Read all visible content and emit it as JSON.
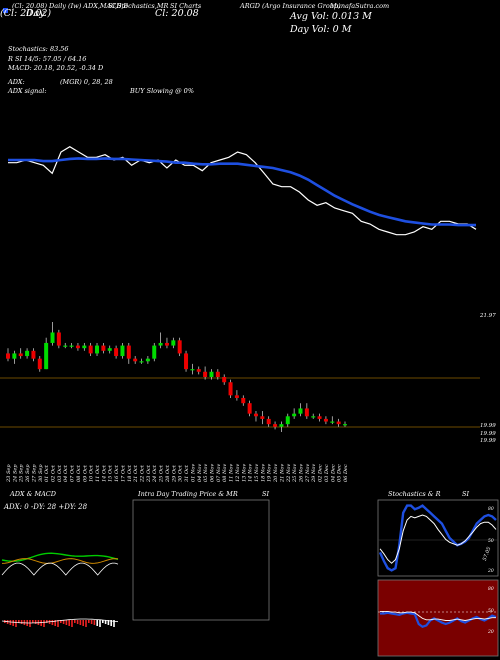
{
  "header": {
    "items": [
      "(Cl: 20.08) Daily (Iw) ADX,MACD,B",
      "SI,Stochastics,MR",
      "SI Charts",
      "ARGD (Argo Insurance Group)",
      "MunafaSutra.com"
    ],
    "line1_blocks": [
      "(Cl: 20.02)",
      "Cl: 20.08",
      "Avg Vol: 0.013 M"
    ],
    "date_chip": "Day",
    "day_vol": "Day Vol: 0  M"
  },
  "indicators": {
    "stochastics": "Stochastics: 83.56",
    "si": "R      SI 14/5: 57.05 / 64.16",
    "macd": "MACD: 20.18, 20.52, -0.34  D",
    "adx": "ADX:",
    "adx_signal": "ADX  signal:",
    "mgr": "(MGR) 0, 28, 28",
    "buy_signal": "BUY Slowing @ 0%"
  },
  "price_labels": {
    "top": "21.97",
    "bottom": [
      "19.99",
      "19.99",
      "19.99"
    ]
  },
  "x_dates": [
    "23 Sep",
    "24 Sep",
    "25 Sep",
    "26 Sep",
    "27 Sep",
    "30 Sep",
    "01 Oct",
    "02 Oct",
    "03 Oct",
    "04 Oct",
    "07 Oct",
    "08 Oct",
    "09 Oct",
    "10 Oct",
    "11 Oct",
    "14 Oct",
    "15 Oct",
    "16 Oct",
    "17 Oct",
    "18 Oct",
    "21 Oct",
    "22 Oct",
    "23 Oct",
    "24 Oct",
    "25 Oct",
    "28 Oct",
    "29 Oct",
    "30 Oct",
    "31 Oct",
    "01 Nov",
    "04 Nov",
    "05 Nov",
    "06 Nov",
    "07 Nov",
    "08 Nov",
    "11 Nov",
    "12 Nov",
    "13 Nov",
    "14 Nov",
    "15 Nov",
    "18 Nov",
    "19 Nov",
    "20 Nov",
    "21 Nov",
    "22 Nov",
    "25 Nov",
    "26 Nov",
    "27 Nov",
    "29 Nov",
    "02 Dec",
    "03 Dec",
    "04 Dec",
    "05 Dec",
    "06 Dec"
  ],
  "panels": {
    "adx_title": "ADX  & MACD",
    "adx_values": "ADX: 0  -DY: 28  +DY: 28",
    "mr_title": "Intra  Day Trading Price  & MR",
    "mr_si": "SI",
    "stoch_title": "Stochastics & R",
    "stoch_si": "SI",
    "stoch_labels": [
      "80",
      "50",
      "20"
    ],
    "rsi_labels": [
      "80",
      "50",
      "20"
    ],
    "stoch_value": "57.05"
  },
  "colors": {
    "up": "#00dd00",
    "down": "#ee0000",
    "ma": "#1e4fe0",
    "price_line": "#ffffff",
    "rsi_bg": "#7a0000",
    "grid": "#6b4a00"
  },
  "chart_data": [
    {
      "type": "line",
      "title": "",
      "series": [],
      "note_price": [
        21.97,
        19.99
      ],
      "line_white": [
        20.9,
        20.9,
        20.95,
        20.9,
        20.85,
        20.7,
        21.1,
        21.2,
        21.1,
        21.0,
        21.0,
        21.05,
        20.95,
        21.0,
        20.85,
        20.95,
        20.9,
        20.95,
        20.8,
        20.95,
        20.85,
        20.85,
        20.75,
        20.9,
        20.95,
        21.0,
        21.1,
        21.05,
        20.9,
        20.7,
        20.5,
        20.45,
        20.45,
        20.35,
        20.2,
        20.1,
        20.15,
        20.05,
        20.0,
        19.95,
        19.8,
        19.75,
        19.65,
        19.6,
        19.55,
        19.55,
        19.6,
        19.7,
        19.65,
        19.8,
        19.8,
        19.75,
        19.75,
        19.65
      ],
      "line_blue": [
        20.95,
        20.95,
        20.95,
        20.95,
        20.93,
        20.93,
        20.95,
        20.97,
        20.98,
        20.97,
        20.97,
        20.98,
        20.97,
        20.97,
        20.96,
        20.95,
        20.94,
        20.93,
        20.92,
        20.9,
        20.9,
        20.88,
        20.87,
        20.87,
        20.88,
        20.88,
        20.88,
        20.86,
        20.84,
        20.82,
        20.8,
        20.76,
        20.72,
        20.66,
        20.58,
        20.48,
        20.38,
        20.28,
        20.2,
        20.12,
        20.05,
        19.98,
        19.92,
        19.88,
        19.84,
        19.8,
        19.78,
        19.76,
        19.74,
        19.74,
        19.74,
        19.73,
        19.73,
        19.73
      ]
    },
    {
      "type": "bar",
      "title": "",
      "candles": [
        [
          20.9,
          20.8,
          21.0,
          20.75
        ],
        [
          20.8,
          20.9,
          20.95,
          20.7
        ],
        [
          20.9,
          20.85,
          21.0,
          20.8
        ],
        [
          20.85,
          20.95,
          21.0,
          20.8
        ],
        [
          20.95,
          20.8,
          21.0,
          20.75
        ],
        [
          20.8,
          20.6,
          20.85,
          20.55
        ],
        [
          20.6,
          21.1,
          21.2,
          20.6
        ],
        [
          21.1,
          21.3,
          21.5,
          21.05
        ],
        [
          21.3,
          21.05,
          21.35,
          21.0
        ],
        [
          21.05,
          21.05,
          21.1,
          21.0
        ],
        [
          21.05,
          21.05,
          21.1,
          21.0
        ],
        [
          21.05,
          21.0,
          21.1,
          20.95
        ],
        [
          21.0,
          21.05,
          21.1,
          20.95
        ],
        [
          21.05,
          20.9,
          21.1,
          20.85
        ],
        [
          20.9,
          21.05,
          21.1,
          20.85
        ],
        [
          21.05,
          20.95,
          21.1,
          20.9
        ],
        [
          20.95,
          21.0,
          21.05,
          20.9
        ],
        [
          21.0,
          20.85,
          21.05,
          20.8
        ],
        [
          20.85,
          21.05,
          21.1,
          20.8
        ],
        [
          21.05,
          20.8,
          21.1,
          20.7
        ],
        [
          20.8,
          20.75,
          20.85,
          20.7
        ],
        [
          20.75,
          20.75,
          20.8,
          20.7
        ],
        [
          20.75,
          20.8,
          20.85,
          20.7
        ],
        [
          20.8,
          21.05,
          21.1,
          20.75
        ],
        [
          21.05,
          21.1,
          21.3,
          21.0
        ],
        [
          21.1,
          21.05,
          21.2,
          21.0
        ],
        [
          21.05,
          21.15,
          21.2,
          21.0
        ],
        [
          21.15,
          20.9,
          21.2,
          20.85
        ],
        [
          20.9,
          20.6,
          20.95,
          20.55
        ],
        [
          20.6,
          20.6,
          20.7,
          20.5
        ],
        [
          20.6,
          20.55,
          20.65,
          20.5
        ],
        [
          20.55,
          20.45,
          20.65,
          20.4
        ],
        [
          20.45,
          20.55,
          20.6,
          20.4
        ],
        [
          20.55,
          20.45,
          20.6,
          20.4
        ],
        [
          20.45,
          20.35,
          20.5,
          20.3
        ],
        [
          20.35,
          20.1,
          20.4,
          20.05
        ],
        [
          20.1,
          20.05,
          20.2,
          20.0
        ],
        [
          20.05,
          19.95,
          20.1,
          19.9
        ],
        [
          19.95,
          19.75,
          20.0,
          19.7
        ],
        [
          19.75,
          19.7,
          19.8,
          19.6
        ],
        [
          19.7,
          19.65,
          19.8,
          19.55
        ],
        [
          19.65,
          19.55,
          19.7,
          19.5
        ],
        [
          19.55,
          19.5,
          19.6,
          19.45
        ],
        [
          19.5,
          19.55,
          19.6,
          19.4
        ],
        [
          19.55,
          19.7,
          19.75,
          19.5
        ],
        [
          19.7,
          19.75,
          19.85,
          19.65
        ],
        [
          19.75,
          19.85,
          19.95,
          19.7
        ],
        [
          19.85,
          19.7,
          19.95,
          19.65
        ],
        [
          19.7,
          19.7,
          19.75,
          19.65
        ],
        [
          19.7,
          19.65,
          19.75,
          19.6
        ],
        [
          19.65,
          19.6,
          19.7,
          19.55
        ],
        [
          19.6,
          19.6,
          19.7,
          19.55
        ],
        [
          19.6,
          19.55,
          19.65,
          19.5
        ],
        [
          19.55,
          19.55,
          19.6,
          19.5
        ]
      ]
    }
  ]
}
